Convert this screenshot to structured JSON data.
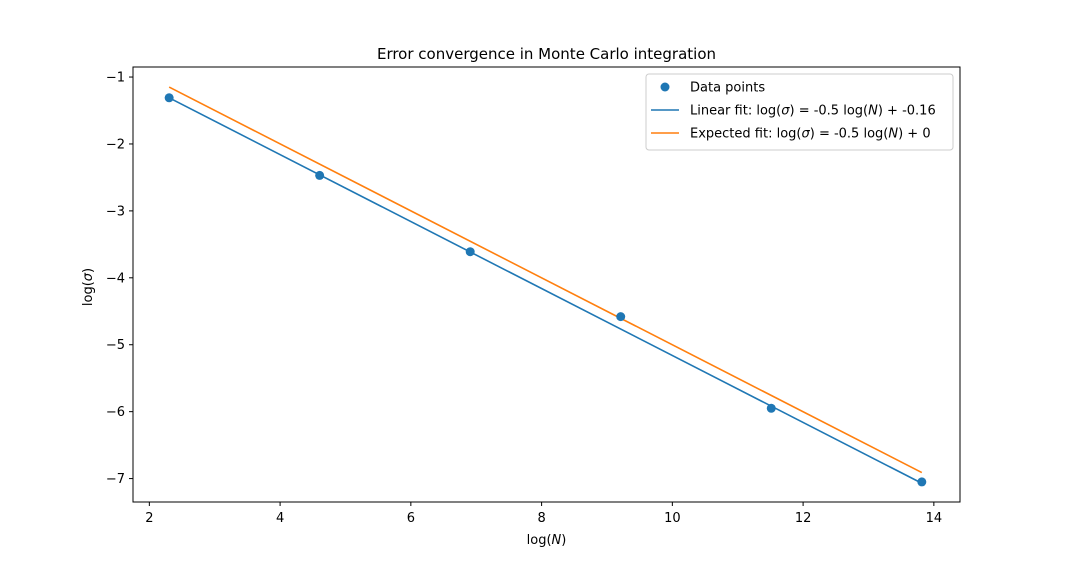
{
  "chart_data": {
    "type": "scatter",
    "title": "Error convergence in Monte Carlo integration",
    "xlabel": "log(N)",
    "ylabel": "log(σ)",
    "xlim": [
      1.75,
      14.4
    ],
    "ylim": [
      -7.35,
      -0.85
    ],
    "xticks": [
      2,
      4,
      6,
      8,
      10,
      12,
      14
    ],
    "yticks": [
      -7,
      -6,
      -5,
      -4,
      -3,
      -2,
      -1
    ],
    "xtick_labels": [
      "2",
      "4",
      "6",
      "8",
      "10",
      "12",
      "14"
    ],
    "ytick_labels": [
      "−7",
      "−6",
      "−5",
      "−4",
      "−3",
      "−2",
      "−1"
    ],
    "grid": false,
    "legend_position": "top-right",
    "series": [
      {
        "name": "Data points",
        "kind": "scatter",
        "color": "#1f77b4",
        "x": [
          2.303,
          4.605,
          6.908,
          9.21,
          11.513,
          13.816
        ],
        "y": [
          -1.31,
          -2.47,
          -3.61,
          -4.58,
          -5.95,
          -7.05
        ]
      },
      {
        "name": "Linear fit: log(σ) = -0.5 log(N) + -0.16",
        "kind": "line",
        "color": "#1f77b4",
        "slope": -0.5,
        "intercept": -0.16,
        "x": [
          2.303,
          13.816
        ],
        "y": [
          -1.31,
          -7.07
        ]
      },
      {
        "name": "Expected fit: log(σ) = -0.5 log(N) + 0",
        "kind": "line",
        "color": "#ff7f0e",
        "slope": -0.5,
        "intercept": 0,
        "x": [
          2.303,
          13.816
        ],
        "y": [
          -1.15,
          -6.91
        ]
      }
    ]
  }
}
